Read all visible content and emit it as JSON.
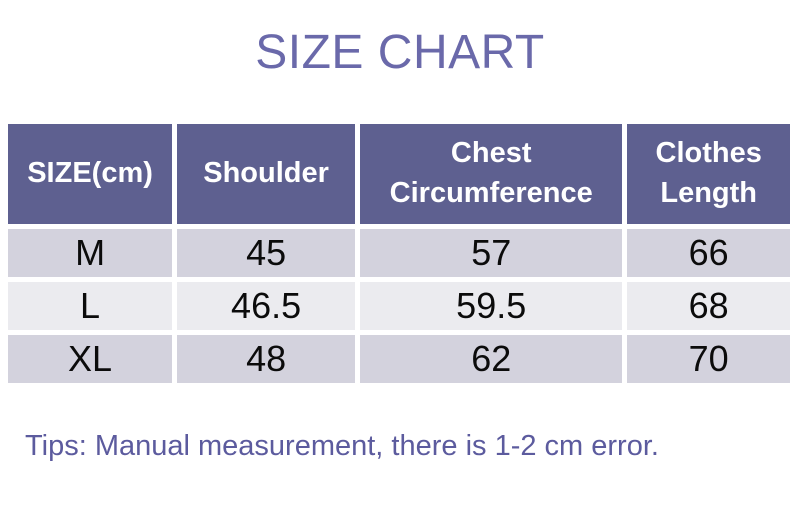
{
  "colors": {
    "title_text": "#6a69aa",
    "header_background": "#5e6090",
    "header_text": "#ffffff",
    "row_odd_background": "#d3d2dd",
    "row_even_background": "#ebebef",
    "cell_text": "#0b0b0b",
    "tip_text": "#5c5b9e",
    "page_background": "#ffffff"
  },
  "chart_data": {
    "type": "table",
    "title": "SIZE CHART",
    "columns": [
      "SIZE(cm)",
      "Shoulder",
      "Chest Circumference",
      "Clothes Length"
    ],
    "rows": [
      [
        "M",
        45,
        57,
        66
      ],
      [
        "L",
        46.5,
        59.5,
        68
      ],
      [
        "XL",
        48,
        62,
        70
      ]
    ],
    "note": "Tips: Manual measurement, there is 1-2 cm error."
  }
}
